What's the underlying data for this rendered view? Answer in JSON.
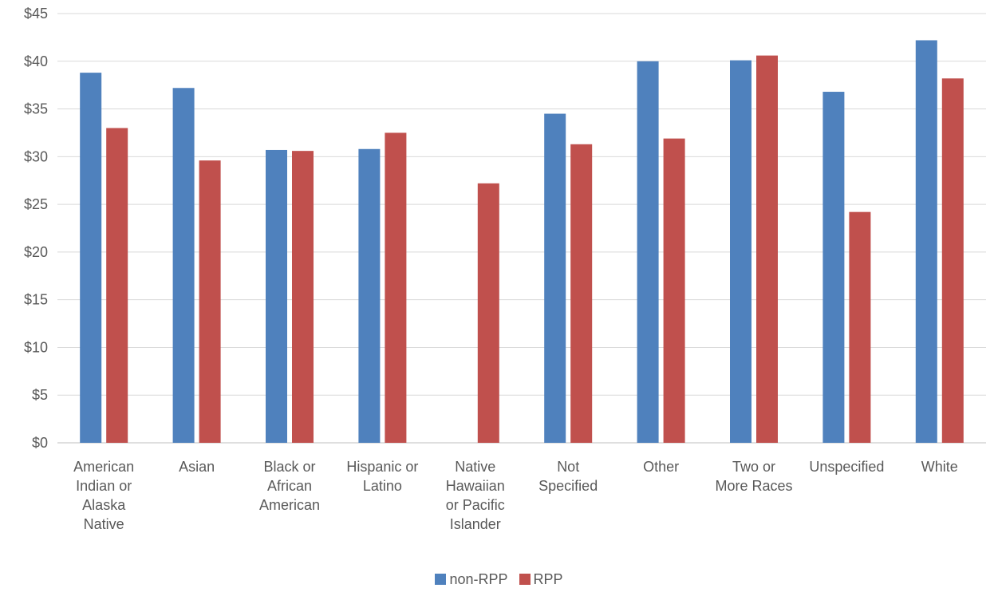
{
  "chart_data": {
    "type": "bar",
    "title": "",
    "xlabel": "",
    "ylabel": "",
    "ylim": [
      0,
      45
    ],
    "y_ticks": [
      "$0",
      "$5",
      "$10",
      "$15",
      "$20",
      "$25",
      "$30",
      "$35",
      "$40",
      "$45"
    ],
    "grid": true,
    "legend_position": "bottom",
    "categories": [
      [
        "American",
        "Indian or",
        "Alaska",
        "Native"
      ],
      [
        "Asian"
      ],
      [
        "Black or",
        "African",
        "American"
      ],
      [
        "Hispanic or",
        "Latino"
      ],
      [
        "Native",
        "Hawaiian",
        "or Pacific",
        "Islander"
      ],
      [
        "Not",
        "Specified"
      ],
      [
        "Other"
      ],
      [
        "Two or",
        "More Races"
      ],
      [
        "Unspecified"
      ],
      [
        "White"
      ]
    ],
    "series": [
      {
        "name": "non-RPP",
        "color": "#4F81BD",
        "values": [
          38.8,
          37.2,
          30.7,
          30.8,
          null,
          34.5,
          40.0,
          40.1,
          36.8,
          42.2
        ]
      },
      {
        "name": "RPP",
        "color": "#C0504D",
        "values": [
          33.0,
          29.6,
          30.6,
          32.5,
          27.2,
          31.3,
          31.9,
          40.6,
          24.2,
          38.2
        ]
      }
    ]
  }
}
